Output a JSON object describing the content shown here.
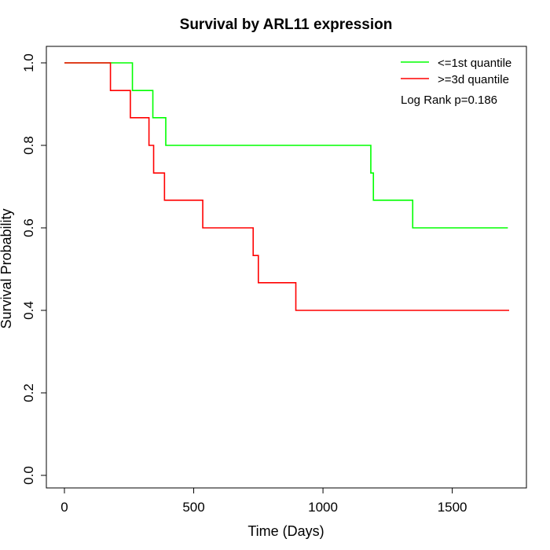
{
  "chart_data": {
    "type": "line",
    "title": "Survival by ARL11 expression",
    "xlabel": "Time (Days)",
    "ylabel": "Survival Probability",
    "xlim": [
      0,
      1720
    ],
    "ylim": [
      0,
      1
    ],
    "xticks": [
      0,
      500,
      1000,
      1500
    ],
    "yticks": [
      0.0,
      0.2,
      0.4,
      0.6,
      0.8,
      1.0
    ],
    "xtick_labels": [
      "0",
      "500",
      "1000",
      "1500"
    ],
    "ytick_labels": [
      "0.0",
      "0.2",
      "0.4",
      "0.6",
      "0.8",
      "1.0"
    ],
    "grid": false,
    "legend_position": "top-right",
    "annotation": "Log Rank p=0.186",
    "series": [
      {
        "name": "<=1st quantile",
        "color": "#00ff00",
        "step": true,
        "x": [
          0,
          263,
          342,
          392,
          1185,
          1195,
          1347,
          1715
        ],
        "y": [
          1.0,
          0.933,
          0.867,
          0.8,
          0.733,
          0.667,
          0.6,
          0.6
        ]
      },
      {
        "name": ">=3d quantile",
        "color": "#ff0000",
        "step": true,
        "x": [
          0,
          178,
          255,
          327,
          345,
          387,
          535,
          730,
          750,
          895,
          1720
        ],
        "y": [
          1.0,
          0.933,
          0.867,
          0.8,
          0.733,
          0.667,
          0.6,
          0.533,
          0.467,
          0.4,
          0.4
        ]
      }
    ]
  }
}
